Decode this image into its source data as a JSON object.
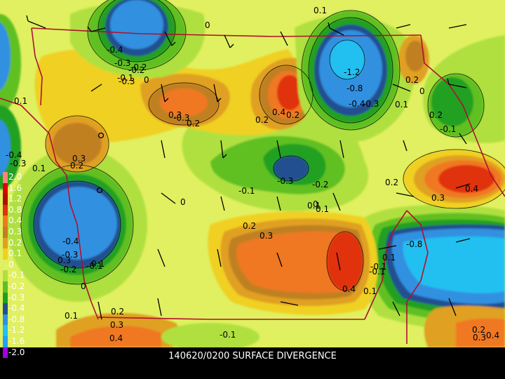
{
  "title": "140620/0200 SURFACE DIVERGENCE",
  "legend": [
    {
      "label": "2.0",
      "color": "#ff8080"
    },
    {
      "label": "1.6",
      "color": "#e00000"
    },
    {
      "label": "1.2",
      "color": "#b01000"
    },
    {
      "label": "0.8",
      "color": "#e03010"
    },
    {
      "label": "0.4",
      "color": "#f07820"
    },
    {
      "label": "0.3",
      "color": "#c08020"
    },
    {
      "label": "0.2",
      "color": "#e0a020"
    },
    {
      "label": "0.1",
      "color": "#f0d020"
    },
    {
      "label": "0",
      "color": "#e0f060"
    },
    {
      "label": "-0.1",
      "color": "#b0e040"
    },
    {
      "label": "-0.2",
      "color": "#60c020"
    },
    {
      "label": "-0.3",
      "color": "#20a020"
    },
    {
      "label": "-0.4",
      "color": "#205090"
    },
    {
      "label": "-0.8",
      "color": "#3090e0"
    },
    {
      "label": "-1.2",
      "color": "#20c0f0"
    },
    {
      "label": "-1.6",
      "color": "#20a0ff"
    },
    {
      "label": "-2.0",
      "color": "#a000e0"
    }
  ],
  "contour_labels": [
    "0.1",
    "0",
    "-0.4",
    "-0.3",
    "-0.2",
    "-0.1",
    "0",
    "0.1",
    "-0.3",
    "0.2",
    "0.3",
    "0.2",
    "0.3",
    "-0.4",
    "-0.3",
    "-0.3",
    "-0.2",
    "-1.2",
    "-0.8",
    "-0.4",
    "-0.3",
    "0.1",
    "0.2",
    "0",
    "0.2",
    "-0.1",
    "0.1",
    "0.3",
    "0.2",
    "-0.1",
    "-0.2",
    "-0.3",
    "0.1",
    "0",
    "0.2",
    "0.3",
    "0.4",
    "-0.2",
    "-0.3",
    "-0.4",
    "-0.1",
    "0.1",
    "0.2",
    "0.3",
    "0.4",
    "0",
    "0.1",
    "-0.8",
    "-0.1",
    "0.4",
    "0.1",
    "0.2",
    "0.3",
    "0.4",
    "0.1",
    "-0.1",
    "0.2",
    "0.3",
    "0.4",
    "0.2",
    "-0.1",
    "0.1",
    "0"
  ]
}
